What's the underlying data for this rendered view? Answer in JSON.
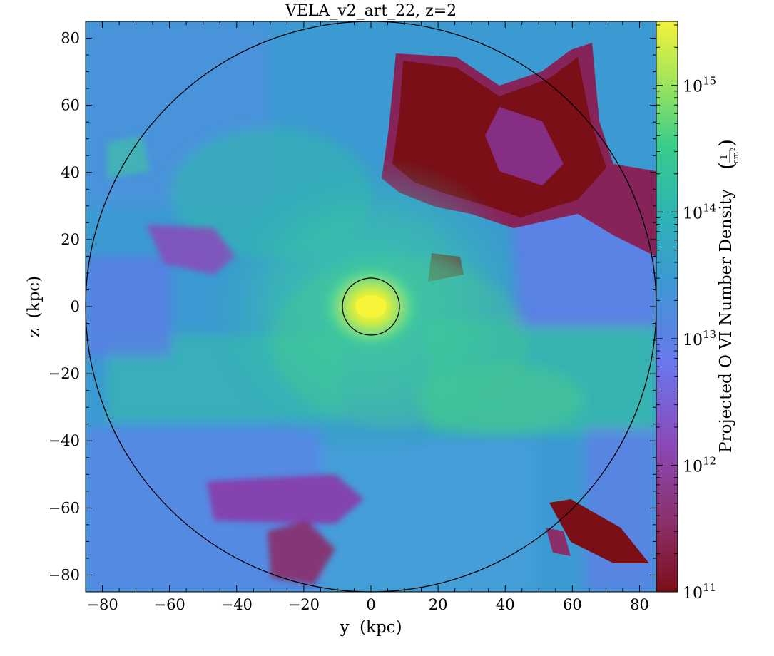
{
  "chart_data": {
    "type": "heatmap",
    "title": "VELA_v2_art_22, z=2",
    "xlabel": "y  (kpc)",
    "ylabel": "z  (kpc)",
    "xlim": [
      -85,
      85
    ],
    "ylim": [
      -85,
      85
    ],
    "x_ticks": [
      -80,
      -60,
      -40,
      -20,
      0,
      20,
      40,
      60,
      80
    ],
    "y_ticks": [
      -80,
      -60,
      -40,
      -20,
      0,
      20,
      40,
      60,
      80
    ],
    "x_tick_labels": [
      "−80",
      "−60",
      "−40",
      "−20",
      "0",
      "20",
      "40",
      "60",
      "80"
    ],
    "y_tick_labels": [
      "−80",
      "−60",
      "−40",
      "−20",
      "0",
      "20",
      "40",
      "60",
      "80"
    ],
    "grid": false,
    "colorbar": {
      "label": "Projected O VI Number Density",
      "unit_numerator": "1",
      "unit_denominator": "cm",
      "unit_power": "2",
      "scale": "log",
      "range": [
        100000000000.0,
        3200000000000000.0
      ],
      "colormap": "viridis-like (dark red → purple → blue → teal → green → yellow)",
      "tick_values": [
        100000000000.0,
        1000000000000.0,
        10000000000000.0,
        100000000000000.0,
        1000000000000000.0
      ],
      "tick_labels": [
        {
          "base": "10",
          "exp": "11"
        },
        {
          "base": "10",
          "exp": "12"
        },
        {
          "base": "10",
          "exp": "13"
        },
        {
          "base": "10",
          "exp": "14"
        },
        {
          "base": "10",
          "exp": "15"
        }
      ]
    },
    "overlays": [
      {
        "shape": "circle",
        "center": [
          0,
          0
        ],
        "radius_kpc": 85
      },
      {
        "shape": "circle",
        "center": [
          0,
          0
        ],
        "radius_kpc": 8.5
      }
    ],
    "colors": {
      "c11": "#7a0f18",
      "c12": "#8a3aa8",
      "c13": "#6a78ec",
      "c14": "#2eb0b8",
      "c14_5": "#3cd090",
      "c15": "#f2f23c"
    }
  }
}
